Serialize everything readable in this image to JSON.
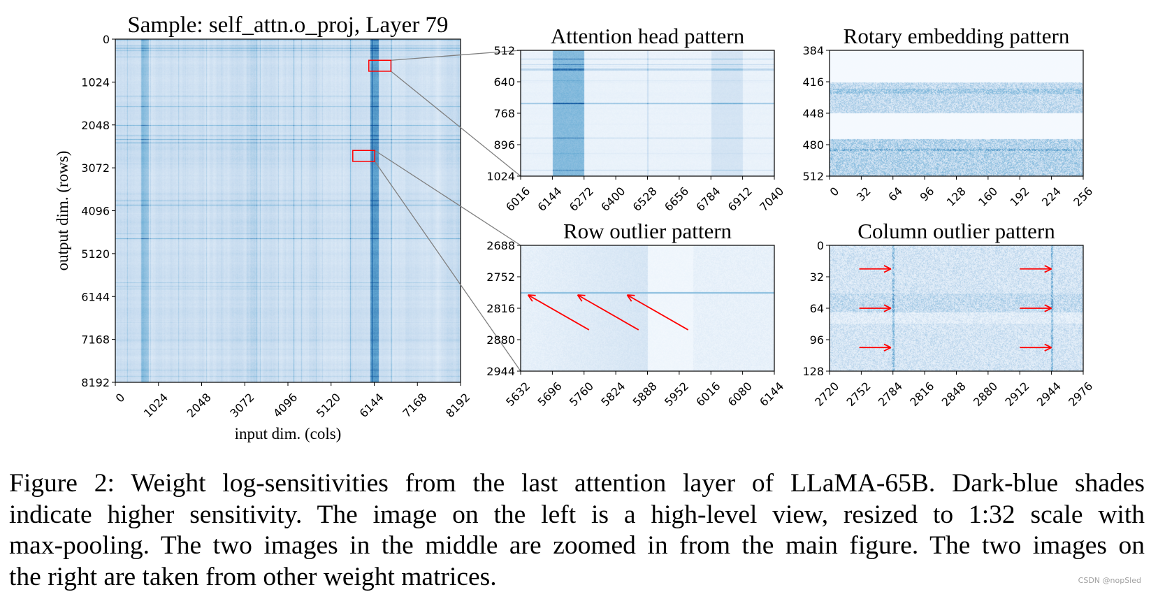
{
  "chart_data": [
    {
      "type": "heatmap",
      "id": "main",
      "title": "Sample: self_attn.o_proj, Layer 79",
      "xlabel": "input dim. (cols)",
      "ylabel": "output dim. (rows)",
      "xlim": [
        0,
        8192
      ],
      "ylim": [
        0,
        8192
      ],
      "xticks": [
        "0",
        "1024",
        "2048",
        "3072",
        "4096",
        "5120",
        "6144",
        "7168",
        "8192"
      ],
      "yticks": [
        "0",
        "1024",
        "2048",
        "3072",
        "4096",
        "5120",
        "6144",
        "7168",
        "8192"
      ],
      "colormap": "Blues",
      "highlight_boxes": [
        {
          "x": [
            6016,
            6540
          ],
          "y": [
            505,
            766
          ],
          "links_to": "attention"
        },
        {
          "x": [
            5635,
            6157
          ],
          "y": [
            2657,
            2918
          ],
          "links_to": "row"
        }
      ]
    },
    {
      "type": "heatmap",
      "id": "attention",
      "title": "Attention head pattern",
      "xlim": [
        6016,
        7040
      ],
      "ylim": [
        512,
        1024
      ],
      "xticks": [
        "6016",
        "6144",
        "6272",
        "6400",
        "6528",
        "6656",
        "6784",
        "6912",
        "7040"
      ],
      "yticks": [
        "512",
        "640",
        "768",
        "896",
        "1024"
      ],
      "colormap": "Blues"
    },
    {
      "type": "heatmap",
      "id": "rotary",
      "title": "Rotary embedding pattern",
      "xlim": [
        0,
        256
      ],
      "ylim": [
        384,
        512
      ],
      "xticks": [
        "0",
        "32",
        "64",
        "96",
        "128",
        "160",
        "192",
        "224",
        "256"
      ],
      "yticks": [
        "384",
        "416",
        "448",
        "480",
        "512"
      ],
      "colormap": "Blues"
    },
    {
      "type": "heatmap",
      "id": "row",
      "title": "Row outlier pattern",
      "xlim": [
        5632,
        6144
      ],
      "ylim": [
        2688,
        2944
      ],
      "xticks": [
        "5632",
        "5696",
        "5760",
        "5824",
        "5888",
        "5952",
        "6016",
        "6080",
        "6144"
      ],
      "yticks": [
        "2688",
        "2752",
        "2816",
        "2880",
        "2944"
      ],
      "colormap": "Blues",
      "arrows": [
        {
          "from": [
            5770,
            2860
          ],
          "to": [
            5647,
            2789
          ]
        },
        {
          "from": [
            5870,
            2860
          ],
          "to": [
            5747,
            2789
          ]
        },
        {
          "from": [
            5970,
            2860
          ],
          "to": [
            5847,
            2789
          ]
        }
      ]
    },
    {
      "type": "heatmap",
      "id": "column",
      "title": "Column outlier pattern",
      "xlim": [
        2720,
        2976
      ],
      "ylim": [
        0,
        128
      ],
      "xticks": [
        "2720",
        "2752",
        "2784",
        "2816",
        "2848",
        "2880",
        "2912",
        "2944",
        "2976"
      ],
      "yticks": [
        "0",
        "32",
        "64",
        "96",
        "128"
      ],
      "colormap": "Blues",
      "arrows": [
        {
          "from": [
            2750,
            24
          ],
          "to": [
            2782,
            24
          ]
        },
        {
          "from": [
            2750,
            64
          ],
          "to": [
            2782,
            64
          ]
        },
        {
          "from": [
            2750,
            104
          ],
          "to": [
            2782,
            104
          ]
        },
        {
          "from": [
            2912,
            24
          ],
          "to": [
            2944,
            24
          ]
        },
        {
          "from": [
            2912,
            64
          ],
          "to": [
            2944,
            64
          ]
        },
        {
          "from": [
            2912,
            104
          ],
          "to": [
            2944,
            104
          ]
        }
      ]
    }
  ],
  "caption": {
    "lines": [
      "Figure 2: Weight log-sensitivities from the last attention layer of LLaMA-65B. Dark-blue shades",
      "indicate higher sensitivity. The image on the left is a high-level view, resized to 1:32 scale with",
      "max-pooling. The two images in the middle are zoomed in from the main figure. The two images on",
      "the right are taken from other weight matrices."
    ]
  },
  "watermark": "CSDN @nopSled",
  "colors": {
    "cmap_low": "#f7fbff",
    "cmap_high": "#08519c",
    "box": "#ff0000",
    "arrow": "#ff0000",
    "connector": "#808080"
  }
}
